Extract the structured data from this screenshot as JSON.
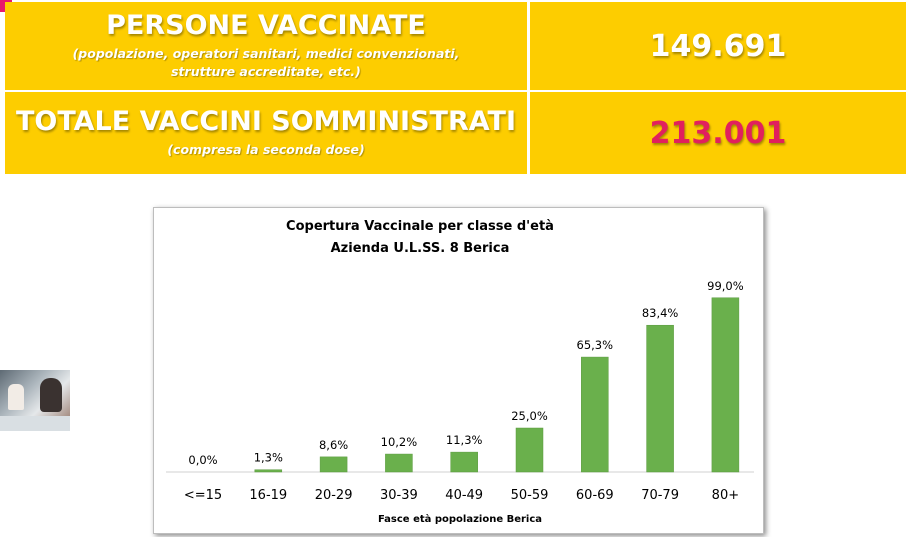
{
  "banner": {
    "people_title": "PERSONE VACCINATE",
    "people_sub_line1": "(popolazione, operatori sanitari, medici convenzionati,",
    "people_sub_line2": "strutture accreditate, etc.)",
    "people_value": "149.691",
    "total_title": "TOTALE VACCINI SOMMINISTRATI",
    "total_sub": "(compresa la seconda dose)",
    "total_value": "213.001",
    "colors": {
      "background": "#fdcd00",
      "value_people": "#ffffff",
      "value_total": "#e1205e"
    }
  },
  "thumbnail": {
    "icon": "photo-thumbnail"
  },
  "chart_data": {
    "type": "bar",
    "title_line1": "Copertura Vaccinale per classe d'età",
    "title_line2": "Azienda U.L.SS. 8 Berica",
    "xlabel": "Fasce età popolazione Berica",
    "categories": [
      "<=15",
      "16-19",
      "20-29",
      "30-39",
      "40-49",
      "50-59",
      "60-69",
      "70-79",
      "80+"
    ],
    "values": [
      0.0,
      1.3,
      8.6,
      10.2,
      11.3,
      25.0,
      65.3,
      83.4,
      99.0
    ],
    "value_labels": [
      "0,0%",
      "1,3%",
      "8,6%",
      "10,2%",
      "11,3%",
      "25,0%",
      "65,3%",
      "83,4%",
      "99,0%"
    ],
    "ylim": [
      0,
      100
    ],
    "grid": false,
    "legend": "none",
    "bar_color": "#6ab04c"
  }
}
